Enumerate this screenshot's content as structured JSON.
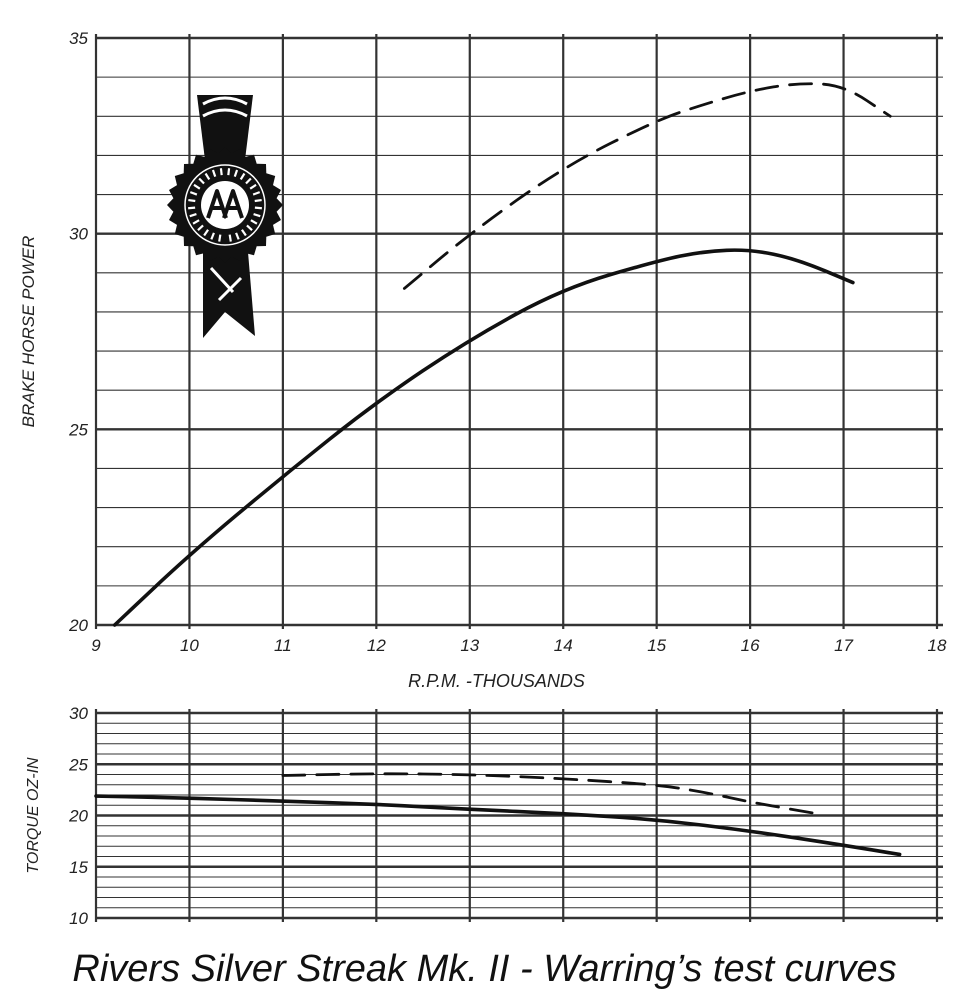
{
  "caption": "Rivers Silver Streak Mk. II - Warring’s test curves",
  "colors": {
    "ink": "#111111",
    "grid": "#333333",
    "paper": "#ffffff"
  },
  "chart_data": [
    {
      "type": "line",
      "xlabel": "R.P.M. -THOUSANDS",
      "ylabel": "BRAKE HORSE POWER",
      "xlim": [
        9,
        18
      ],
      "ylim": [
        20,
        35
      ],
      "x_ticks": [
        "9",
        "10",
        "11",
        "12",
        "13",
        "14",
        "15",
        "16",
        "17",
        "18"
      ],
      "y_ticks": [
        "20",
        "25",
        "30",
        "35"
      ],
      "grid": true,
      "emblem_text": "AEROMODELLER ANALYSIS",
      "series": [
        {
          "style": "solid",
          "x": [
            9.2,
            10,
            11,
            12,
            13,
            14,
            15,
            15.5,
            16,
            16.5,
            17.1
          ],
          "y": [
            20.0,
            21.8,
            23.8,
            25.7,
            27.3,
            28.6,
            29.3,
            29.55,
            29.6,
            29.35,
            28.75
          ]
        },
        {
          "style": "dashed",
          "x": [
            12.3,
            13,
            14,
            15,
            15.5,
            16,
            16.5,
            17,
            17.5
          ],
          "y": [
            28.6,
            30.0,
            31.7,
            32.9,
            33.3,
            33.65,
            33.85,
            33.8,
            33.0
          ]
        }
      ]
    },
    {
      "type": "line",
      "xlabel": "",
      "ylabel": "TORQUE OZ-IN",
      "xlim": [
        9,
        18
      ],
      "ylim": [
        10,
        30
      ],
      "y_ticks": [
        "10",
        "15",
        "20",
        "25",
        "30"
      ],
      "grid": true,
      "series": [
        {
          "style": "solid",
          "x": [
            9,
            10,
            11,
            12,
            13,
            14,
            15,
            16,
            17,
            17.6
          ],
          "y": [
            21.9,
            21.7,
            21.4,
            21.1,
            20.6,
            20.2,
            19.6,
            18.5,
            17.1,
            16.2
          ]
        },
        {
          "style": "dashed",
          "x": [
            11,
            12,
            13,
            14,
            15,
            15.5,
            16,
            16.7
          ],
          "y": [
            23.9,
            24.1,
            24.0,
            23.6,
            23.0,
            22.3,
            21.3,
            20.2
          ]
        }
      ]
    }
  ]
}
